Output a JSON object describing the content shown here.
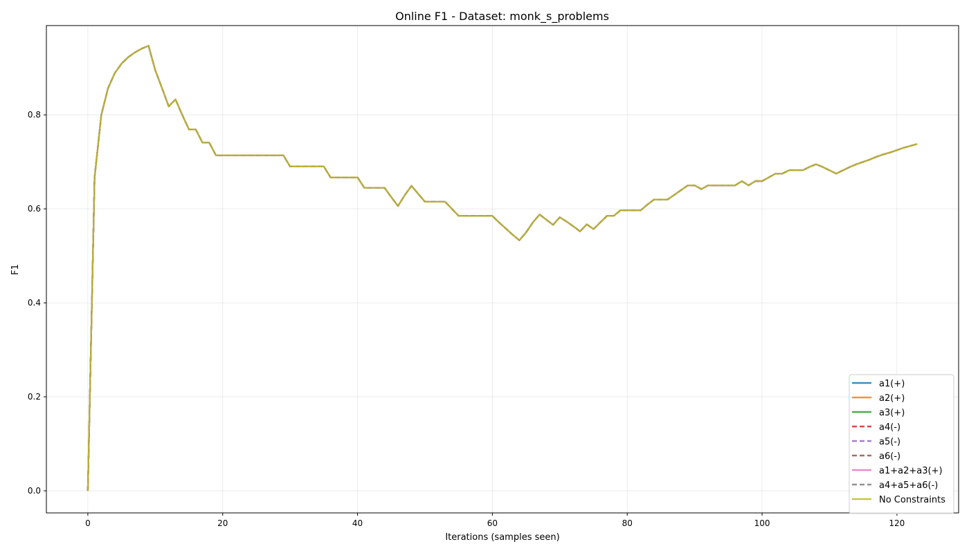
{
  "chart_data": {
    "type": "line",
    "title": "Online F1 - Dataset: monk_s_problems",
    "xlabel": "Iterations (samples seen)",
    "ylabel": "F1",
    "xlim": [
      -6.15,
      129.15
    ],
    "ylim": [
      -0.047,
      0.99
    ],
    "xticks": [
      0,
      20,
      40,
      60,
      80,
      100,
      120
    ],
    "yticks": [
      0.0,
      0.2,
      0.4,
      0.6,
      0.8
    ],
    "ytick_labels": [
      "0.0",
      "0.2",
      "0.4",
      "0.6",
      "0.8"
    ],
    "grid": true,
    "legend_position": "lower-right",
    "x": [
      0,
      1,
      2,
      3,
      4,
      5,
      6,
      7,
      8,
      9,
      10,
      11,
      12,
      13,
      14,
      15,
      16,
      17,
      18,
      19,
      20,
      21,
      22,
      23,
      24,
      25,
      26,
      27,
      28,
      29,
      30,
      31,
      32,
      33,
      34,
      35,
      36,
      37,
      38,
      39,
      40,
      41,
      42,
      43,
      44,
      45,
      46,
      47,
      48,
      49,
      50,
      51,
      52,
      53,
      54,
      55,
      56,
      57,
      58,
      59,
      60,
      61,
      62,
      63,
      64,
      65,
      66,
      67,
      68,
      69,
      70,
      71,
      72,
      73,
      74,
      75,
      76,
      77,
      78,
      79,
      80,
      81,
      82,
      83,
      84,
      85,
      86,
      87,
      88,
      89,
      90,
      91,
      92,
      93,
      94,
      95,
      96,
      97,
      98,
      99,
      100,
      101,
      102,
      103,
      104,
      105,
      106,
      107,
      108,
      109,
      110,
      111,
      112,
      113,
      114,
      115,
      116,
      117,
      118,
      119,
      120,
      121,
      122,
      123
    ],
    "y": [
      0.0,
      0.667,
      0.8,
      0.857,
      0.889,
      0.909,
      0.923,
      0.933,
      0.941,
      0.947,
      0.895,
      0.857,
      0.818,
      0.833,
      0.8,
      0.769,
      0.769,
      0.741,
      0.741,
      0.714,
      0.714,
      0.714,
      0.714,
      0.714,
      0.714,
      0.714,
      0.714,
      0.714,
      0.714,
      0.714,
      0.69,
      0.69,
      0.69,
      0.69,
      0.69,
      0.69,
      0.667,
      0.667,
      0.667,
      0.667,
      0.667,
      0.645,
      0.645,
      0.645,
      0.645,
      0.625,
      0.606,
      0.629,
      0.649,
      0.632,
      0.615,
      0.615,
      0.615,
      0.615,
      0.6,
      0.585,
      0.585,
      0.585,
      0.585,
      0.585,
      0.585,
      0.571,
      0.558,
      0.545,
      0.533,
      0.55,
      0.571,
      0.588,
      0.577,
      0.566,
      0.582,
      0.573,
      0.563,
      0.552,
      0.567,
      0.557,
      0.571,
      0.585,
      0.585,
      0.597,
      0.597,
      0.597,
      0.597,
      0.609,
      0.62,
      0.62,
      0.62,
      0.63,
      0.64,
      0.65,
      0.65,
      0.642,
      0.65,
      0.65,
      0.65,
      0.65,
      0.65,
      0.659,
      0.65,
      0.659,
      0.659,
      0.667,
      0.675,
      0.675,
      0.682,
      0.682,
      0.682,
      0.689,
      0.695,
      0.689,
      0.682,
      0.675,
      0.682,
      0.689,
      0.695,
      0.7,
      0.705,
      0.711,
      0.716,
      0.72,
      0.725,
      0.73,
      0.734,
      0.738
    ],
    "series": [
      {
        "name": "a1(+)",
        "color": "#1f77b4",
        "dash": "solid"
      },
      {
        "name": "a2(+)",
        "color": "#ff7f0e",
        "dash": "solid"
      },
      {
        "name": "a3(+)",
        "color": "#2ca02c",
        "dash": "solid"
      },
      {
        "name": "a4(-)",
        "color": "#d62728",
        "dash": "dashed"
      },
      {
        "name": "a5(-)",
        "color": "#9467bd",
        "dash": "dashed"
      },
      {
        "name": "a6(-)",
        "color": "#8c564b",
        "dash": "dashed"
      },
      {
        "name": "a1+a2+a3(+)",
        "color": "#e377c2",
        "dash": "solid"
      },
      {
        "name": "a4+a5+a6(-)",
        "color": "#7f7f7f",
        "dash": "dashed"
      },
      {
        "name": "No Constraints",
        "color": "#bcbd22",
        "dash": "solid"
      }
    ]
  }
}
